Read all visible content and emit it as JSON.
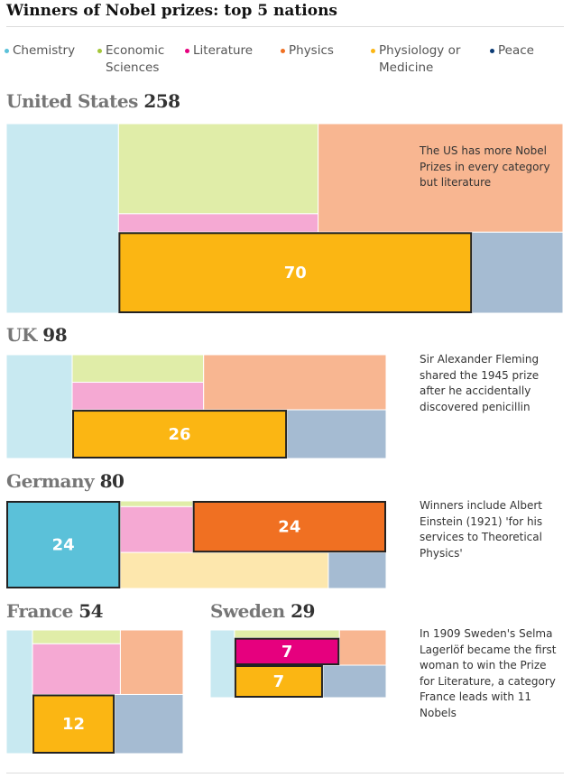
{
  "chart_data": {
    "type": "treemap",
    "title": "Winners of Nobel prizes: top 5 nations",
    "categories": [
      "Chemistry",
      "Economic Sciences",
      "Literature",
      "Physics",
      "Physiology or Medicine",
      "Peace"
    ],
    "colors": [
      "#5bc1d9",
      "#a4c639",
      "#e6007e",
      "#f07022",
      "#fbb613",
      "#0b3b75"
    ],
    "light_colors": [
      "#c8e9f1",
      "#e0eda8",
      "#f5a9d3",
      "#f8b691",
      "#fde7ad",
      "#a5bbd2"
    ],
    "nations": [
      {
        "name": "United States",
        "total": 258,
        "values": [
          52,
          44,
          9,
          65,
          70,
          18
        ],
        "highlight": [
          4
        ],
        "annotation": "The US has more Nobel Prizes in every category but literature"
      },
      {
        "name": "UK",
        "total": 98,
        "values": [
          17,
          9,
          9,
          25,
          26,
          12
        ],
        "highlight": [
          4
        ],
        "annotation": "Sir Alexander Fleming shared the 1945 prize after he accidentally discovered penicillin"
      },
      {
        "name": "Germany",
        "total": 80,
        "values": [
          24,
          1,
          8,
          24,
          18,
          5
        ],
        "highlight": [
          0,
          3
        ],
        "annotation": "Winners include Albert Einstein (1921) 'for his services to Theoretical Physics'"
      },
      {
        "name": "France",
        "total": 54,
        "values": [
          8,
          3,
          11,
          10,
          12,
          10
        ],
        "highlight": [
          4
        ]
      },
      {
        "name": "Sweden",
        "total": 29,
        "values": [
          4,
          2,
          7,
          4,
          7,
          5
        ],
        "highlight": [
          2,
          4
        ],
        "annotation": "In 1909 Sweden's Selma Lagerlöf became the first woman to win the Prize for Literature, a category France leads with 11 Nobels"
      }
    ]
  }
}
